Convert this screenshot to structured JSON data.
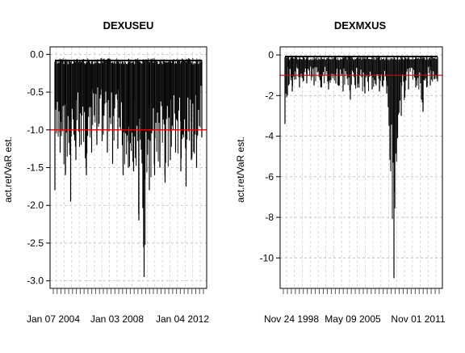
{
  "chart_data": [
    {
      "type": "line",
      "title": "DEXUSEU",
      "ylabel": "act.ret/VaR est.",
      "xlabel": "",
      "ylim": [
        -3.1,
        0.1
      ],
      "yticks": [
        0.0,
        -0.5,
        -1.0,
        -1.5,
        -2.0,
        -2.5,
        -3.0
      ],
      "ytick_labels": [
        "0.0",
        "-0.5",
        "-1.0",
        "-1.5",
        "-2.0",
        "-2.5",
        "-3.0"
      ],
      "x_tick_labels": [
        "Jan 07 2004",
        "Jan 03 2008",
        "Jan 04 2012"
      ],
      "reference_line": -1.0,
      "grid": true,
      "n_minor_ticks": 40,
      "series": [
        {
          "x": [
            2000.0,
            2000.5,
            2001.0,
            2001.5,
            2002.0,
            2002.5,
            2003.0,
            2003.5,
            2004.0,
            2004.5,
            2005.0,
            2005.5,
            2006.0,
            2006.5,
            2007.0,
            2007.5,
            2008.0,
            2008.5,
            2009.0,
            2009.5,
            2010.0,
            2010.5,
            2011.0,
            2011.5,
            2012.0,
            2012.5,
            2013.0,
            2013.5,
            2014.0
          ],
          "y": [
            -1.8,
            -1.3,
            -1.6,
            -1.95,
            -1.4,
            -1.2,
            -1.6,
            -1.3,
            -1.2,
            -1.15,
            -1.3,
            -1.45,
            -1.25,
            -1.6,
            -1.5,
            -1.55,
            -2.2,
            -2.95,
            -1.8,
            -1.6,
            -1.5,
            -1.7,
            -1.4,
            -1.3,
            -1.55,
            -1.75,
            -1.4,
            -1.5,
            -1.1
          ]
        }
      ]
    },
    {
      "type": "line",
      "title": "DEXMXUS",
      "ylabel": "act.ret/VaR est.",
      "xlabel": "",
      "ylim": [
        -11.5,
        0.4
      ],
      "yticks": [
        0,
        -2,
        -4,
        -6,
        -8,
        -10
      ],
      "ytick_labels": [
        "0",
        "-2",
        "-4",
        "-6",
        "-8",
        "-10"
      ],
      "x_tick_labels": [
        "Nov 24 1998",
        "May 09 2005",
        "Nov 01 2011"
      ],
      "reference_line": -1.0,
      "grid": true,
      "n_minor_ticks": 40,
      "series": [
        {
          "x": [
            1993.0,
            1993.5,
            1994.0,
            1994.5,
            1995.0,
            1995.5,
            1996.0,
            1997.0,
            1998.0,
            1999.0,
            2000.0,
            2001.0,
            2002.0,
            2003.0,
            2004.0,
            2005.0,
            2006.0,
            2007.0,
            2008.0,
            2008.5,
            2009.0,
            2009.5,
            2010.0,
            2011.0,
            2012.0,
            2012.5,
            2013.0,
            2014.0
          ],
          "y": [
            -3.4,
            -1.5,
            -1.8,
            -1.2,
            -1.6,
            -1.3,
            -1.4,
            -1.5,
            -1.6,
            -1.7,
            -1.4,
            -1.8,
            -2.2,
            -1.6,
            -1.9,
            -1.7,
            -1.8,
            -1.9,
            -11.0,
            -4.1,
            -3.0,
            -2.1,
            -1.7,
            -1.6,
            -2.8,
            -1.6,
            -1.5,
            -1.3
          ]
        }
      ]
    }
  ]
}
